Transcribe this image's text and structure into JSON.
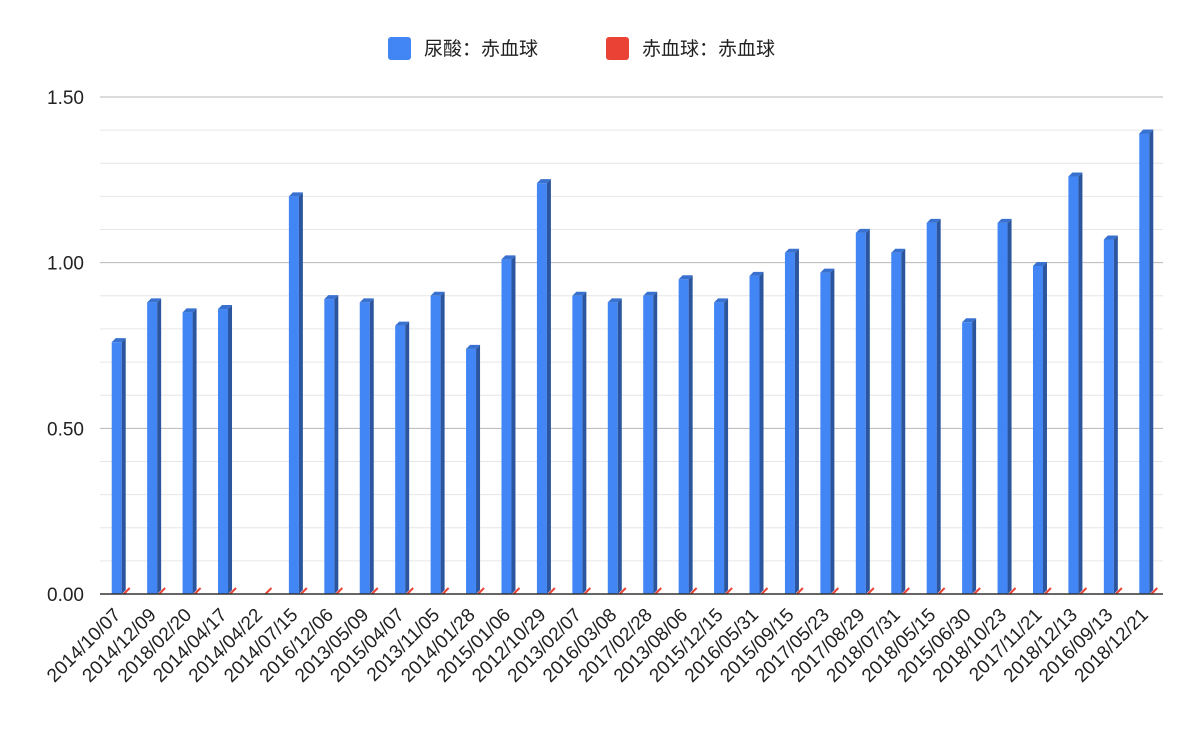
{
  "legend": {
    "items": [
      {
        "label": "尿酸：赤血球",
        "color": "#4285f4"
      },
      {
        "label": "赤血球：赤血球",
        "color": "#ea4335"
      }
    ]
  },
  "chart_data": {
    "type": "bar",
    "categories": [
      "2014/10/07",
      "2014/12/09",
      "2018/02/20",
      "2014/04/17",
      "2014/04/22",
      "2014/07/15",
      "2016/12/06",
      "2013/05/09",
      "2015/04/07",
      "2013/11/05",
      "2014/01/28",
      "2015/01/06",
      "2012/10/29",
      "2013/02/07",
      "2016/03/08",
      "2017/02/28",
      "2013/08/06",
      "2015/12/15",
      "2016/05/31",
      "2015/09/15",
      "2017/05/23",
      "2017/08/29",
      "2018/07/31",
      "2018/05/15",
      "2015/06/30",
      "2018/10/23",
      "2017/11/21",
      "2018/12/13",
      "2016/09/13",
      "2018/12/21"
    ],
    "series": [
      {
        "name": "尿酸：赤血球",
        "color": "#4285f4",
        "values": [
          0.76,
          0.88,
          0.85,
          0.86,
          null,
          1.2,
          0.89,
          0.88,
          0.81,
          0.9,
          0.74,
          1.01,
          1.24,
          0.9,
          0.88,
          0.9,
          0.95,
          0.88,
          0.96,
          1.03,
          0.97,
          1.09,
          1.03,
          1.12,
          0.82,
          1.12,
          0.99,
          1.26,
          1.07,
          1.39
        ]
      },
      {
        "name": "赤血球：赤血球",
        "color": "#ea4335",
        "values": [
          0,
          0,
          0,
          0,
          0,
          0,
          0,
          0,
          0,
          0,
          0,
          0,
          0,
          0,
          0,
          0,
          0,
          0,
          0,
          0,
          0,
          0,
          0,
          0,
          0,
          0,
          0,
          0,
          0,
          0
        ]
      }
    ],
    "ylim": [
      0,
      1.5
    ],
    "yticks": [
      "0.00",
      "0.50",
      "1.00",
      "1.50"
    ],
    "grid": true,
    "legend_position": "top"
  }
}
